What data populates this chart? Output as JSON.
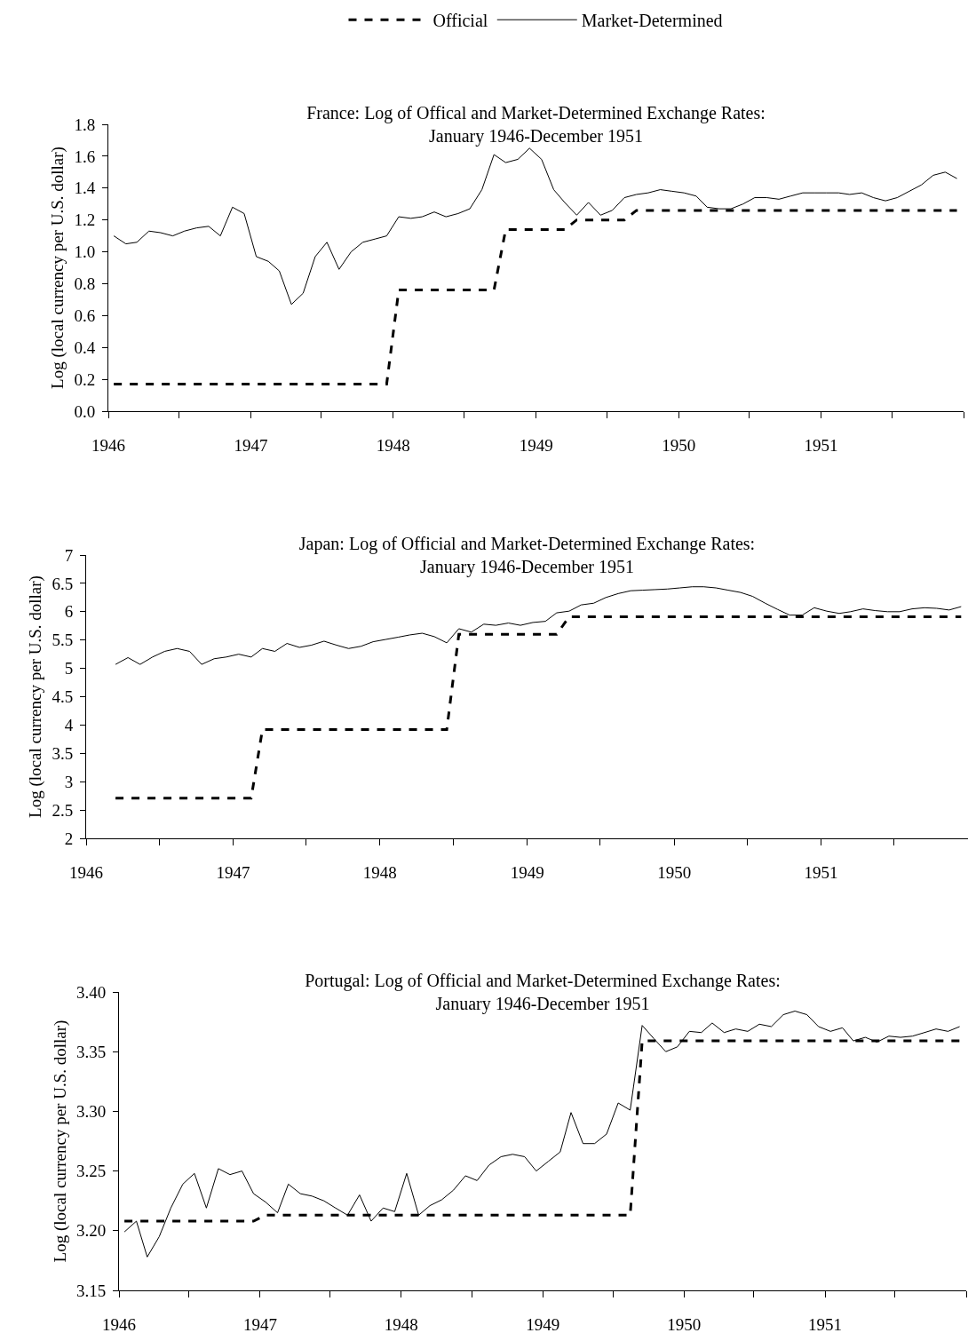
{
  "chart_data": [
    {
      "type": "line",
      "title": "France: Log of Offical and Market-Determined Exchange Rates:\nJanuary 1946-December 1951",
      "ylabel": "Log (local currency per U.S. dollar)",
      "legend": "top",
      "x": [
        "1946-01-15",
        "1946-02-15",
        "1946-03-15",
        "1946-04-15",
        "1946-05-15",
        "1946-06-15",
        "1946-07-15",
        "1946-08-15",
        "1946-09-15",
        "1946-10-15",
        "1946-11-15",
        "1946-12-15",
        "1947-01-15",
        "1947-02-15",
        "1947-03-15",
        "1947-04-15",
        "1947-05-15",
        "1947-06-15",
        "1947-07-15",
        "1947-08-15",
        "1947-09-15",
        "1947-10-15",
        "1947-11-15",
        "1947-12-15",
        "1948-01-15",
        "1948-02-15",
        "1948-03-15",
        "1948-04-15",
        "1948-05-15",
        "1948-06-15",
        "1948-07-15",
        "1948-08-15",
        "1948-09-15",
        "1948-10-15",
        "1948-11-15",
        "1948-12-15",
        "1949-01-15",
        "1949-02-15",
        "1949-03-15",
        "1949-04-15",
        "1949-05-15",
        "1949-06-15",
        "1949-07-15",
        "1949-08-15",
        "1949-09-15",
        "1949-10-15",
        "1949-11-15",
        "1949-12-15",
        "1950-01-15",
        "1950-02-15",
        "1950-03-15",
        "1950-04-15",
        "1950-05-15",
        "1950-06-15",
        "1950-07-15",
        "1950-08-15",
        "1950-09-15",
        "1950-10-15",
        "1950-11-15",
        "1950-12-15",
        "1951-01-15",
        "1951-02-15",
        "1951-03-15",
        "1951-04-15",
        "1951-05-15",
        "1951-06-15",
        "1951-07-15",
        "1951-08-15",
        "1951-09-15",
        "1951-10-15",
        "1951-11-15",
        "1951-12-15"
      ],
      "series": [
        {
          "name": "Official",
          "color": "#000000",
          "line_style": "dashed",
          "values": [
            0.17,
            0.17,
            0.17,
            0.17,
            0.17,
            0.17,
            0.17,
            0.17,
            0.17,
            0.17,
            0.17,
            0.17,
            0.17,
            0.17,
            0.17,
            0.17,
            0.17,
            0.17,
            0.17,
            0.17,
            0.17,
            0.17,
            0.17,
            0.17,
            0.76,
            0.76,
            0.76,
            0.76,
            0.76,
            0.76,
            0.76,
            0.76,
            0.76,
            1.14,
            1.14,
            1.14,
            1.14,
            1.14,
            1.14,
            1.2,
            1.2,
            1.2,
            1.2,
            1.2,
            1.26,
            1.26,
            1.26,
            1.26,
            1.26,
            1.26,
            1.26,
            1.26,
            1.26,
            1.26,
            1.26,
            1.26,
            1.26,
            1.26,
            1.26,
            1.26,
            1.26,
            1.26,
            1.26,
            1.26,
            1.26,
            1.26,
            1.26,
            1.26,
            1.26,
            1.26,
            1.26,
            1.26
          ]
        },
        {
          "name": "Market-Determined",
          "color": "#000000",
          "line_style": "solid",
          "values": [
            1.1,
            1.05,
            1.06,
            1.13,
            1.12,
            1.1,
            1.13,
            1.15,
            1.16,
            1.1,
            1.28,
            1.24,
            0.97,
            0.94,
            0.88,
            0.67,
            0.74,
            0.97,
            1.06,
            0.89,
            1.0,
            1.06,
            1.08,
            1.1,
            1.22,
            1.21,
            1.22,
            1.25,
            1.22,
            1.24,
            1.27,
            1.39,
            1.61,
            1.56,
            1.58,
            1.65,
            1.58,
            1.39,
            1.31,
            1.23,
            1.31,
            1.23,
            1.26,
            1.34,
            1.36,
            1.37,
            1.39,
            1.38,
            1.37,
            1.35,
            1.28,
            1.27,
            1.27,
            1.3,
            1.34,
            1.34,
            1.33,
            1.35,
            1.37,
            1.37,
            1.37,
            1.37,
            1.36,
            1.37,
            1.34,
            1.32,
            1.34,
            1.38,
            1.42,
            1.48,
            1.5,
            1.46
          ]
        }
      ],
      "xlim": [
        "1946-01-01",
        "1952-01-01"
      ],
      "xticks": [
        {
          "value": "1946-01-01",
          "label": "1946"
        },
        {
          "value": "1946-07-01",
          "label": null
        },
        {
          "value": "1947-01-01",
          "label": "1947"
        },
        {
          "value": "1947-07-01",
          "label": null
        },
        {
          "value": "1948-01-01",
          "label": "1948"
        },
        {
          "value": "1948-07-01",
          "label": null
        },
        {
          "value": "1949-01-01",
          "label": "1949"
        },
        {
          "value": "1949-07-01",
          "label": null
        },
        {
          "value": "1950-01-01",
          "label": "1950"
        },
        {
          "value": "1950-07-01",
          "label": null
        },
        {
          "value": "1951-01-01",
          "label": "1951"
        },
        {
          "value": "1951-07-01",
          "label": null
        },
        {
          "value": "1952-01-01",
          "label": null
        }
      ],
      "ylim": [
        0,
        1.8
      ],
      "yticks": [
        {
          "value": 0,
          "label": "0.0"
        },
        {
          "value": 0.2,
          "label": "0.2"
        },
        {
          "value": 0.4,
          "label": "0.4"
        },
        {
          "value": 0.6,
          "label": "0.6"
        },
        {
          "value": 0.8,
          "label": "0.8"
        },
        {
          "value": 1,
          "label": "1.0"
        },
        {
          "value": 1.2,
          "label": "1.2"
        },
        {
          "value": 1.4,
          "label": "1.4"
        },
        {
          "value": 1.6,
          "label": "1.6"
        },
        {
          "value": 1.8,
          "label": "1.8"
        }
      ]
    },
    {
      "type": "line",
      "title": "Japan: Log of Official and Market-Determined Exchange Rates:\nJanuary 1946-December 1951",
      "ylabel": "Log (local currency per U.S. dollar)",
      "x": [
        "1946-03-15",
        "1946-04-15",
        "1946-05-15",
        "1946-06-15",
        "1946-07-15",
        "1946-08-15",
        "1946-09-15",
        "1946-10-15",
        "1946-11-15",
        "1946-12-15",
        "1947-01-15",
        "1947-02-15",
        "1947-03-15",
        "1947-04-15",
        "1947-05-15",
        "1947-06-15",
        "1947-07-15",
        "1947-08-15",
        "1947-09-15",
        "1947-10-15",
        "1947-11-15",
        "1947-12-15",
        "1948-01-15",
        "1948-02-15",
        "1948-03-15",
        "1948-04-15",
        "1948-05-15",
        "1948-06-15",
        "1948-07-15",
        "1948-08-15",
        "1948-09-15",
        "1948-10-15",
        "1948-11-15",
        "1948-12-15",
        "1949-01-15",
        "1949-02-15",
        "1949-03-15",
        "1949-04-15",
        "1949-05-15",
        "1949-06-15",
        "1949-07-15",
        "1949-08-15",
        "1949-09-15",
        "1949-10-15",
        "1949-11-15",
        "1949-12-15",
        "1950-01-15",
        "1950-02-15",
        "1950-03-15",
        "1950-04-15",
        "1950-05-15",
        "1950-06-15",
        "1950-07-15",
        "1950-08-15",
        "1950-09-15",
        "1950-10-15",
        "1950-11-15",
        "1950-12-15",
        "1951-01-15",
        "1951-02-15",
        "1951-03-15",
        "1951-04-15",
        "1951-05-15",
        "1951-06-15",
        "1951-07-15",
        "1951-08-15",
        "1951-09-15",
        "1951-10-15",
        "1951-11-15",
        "1951-12-15"
      ],
      "series": [
        {
          "color": "#000000",
          "line_style": "dashed",
          "values": [
            2.71,
            2.71,
            2.71,
            2.71,
            2.71,
            2.71,
            2.71,
            2.71,
            2.71,
            2.71,
            2.71,
            2.71,
            3.92,
            3.92,
            3.92,
            3.92,
            3.92,
            3.92,
            3.92,
            3.92,
            3.92,
            3.92,
            3.92,
            3.92,
            3.92,
            3.92,
            3.92,
            3.92,
            5.6,
            5.6,
            5.6,
            5.6,
            5.6,
            5.6,
            5.6,
            5.6,
            5.6,
            5.91,
            5.91,
            5.91,
            5.91,
            5.91,
            5.91,
            5.91,
            5.91,
            5.91,
            5.91,
            5.91,
            5.91,
            5.91,
            5.91,
            5.91,
            5.91,
            5.91,
            5.91,
            5.91,
            5.91,
            5.91,
            5.91,
            5.91,
            5.91,
            5.91,
            5.91,
            5.91,
            5.91,
            5.91,
            5.91,
            5.91,
            5.91,
            5.91
          ]
        },
        {
          "color": "#000000",
          "line_style": "solid",
          "values": [
            5.07,
            5.19,
            5.07,
            5.2,
            5.3,
            5.35,
            5.3,
            5.07,
            5.17,
            5.2,
            5.25,
            5.2,
            5.35,
            5.3,
            5.44,
            5.37,
            5.41,
            5.48,
            5.41,
            5.35,
            5.39,
            5.47,
            5.51,
            5.55,
            5.59,
            5.62,
            5.56,
            5.45,
            5.7,
            5.64,
            5.78,
            5.76,
            5.8,
            5.76,
            5.81,
            5.83,
            5.98,
            6.01,
            6.12,
            6.15,
            6.25,
            6.32,
            6.37,
            6.38,
            6.39,
            6.4,
            6.42,
            6.44,
            6.44,
            6.42,
            6.38,
            6.34,
            6.27,
            6.15,
            6.04,
            5.94,
            5.94,
            6.07,
            6.01,
            5.97,
            6.0,
            6.05,
            6.02,
            6.0,
            6.0,
            6.05,
            6.07,
            6.06,
            6.03,
            6.09
          ]
        }
      ],
      "xlim": [
        "1946-01-01",
        "1952-01-01"
      ],
      "xticks": [
        {
          "value": "1946-01-01",
          "label": "1946"
        },
        {
          "value": "1946-07-01",
          "label": null
        },
        {
          "value": "1947-01-01",
          "label": "1947"
        },
        {
          "value": "1947-07-01",
          "label": null
        },
        {
          "value": "1948-01-01",
          "label": "1948"
        },
        {
          "value": "1948-07-01",
          "label": null
        },
        {
          "value": "1949-01-01",
          "label": "1949"
        },
        {
          "value": "1949-07-01",
          "label": null
        },
        {
          "value": "1950-01-01",
          "label": "1950"
        },
        {
          "value": "1950-07-01",
          "label": null
        },
        {
          "value": "1951-01-01",
          "label": "1951"
        },
        {
          "value": "1951-07-01",
          "label": null
        },
        {
          "value": "1952-01-01",
          "label": null
        }
      ],
      "ylim": [
        2,
        7
      ],
      "yticks": [
        2,
        2.5,
        3,
        3.5,
        4,
        4.5,
        5,
        5.5,
        6,
        6.5,
        7
      ]
    },
    {
      "type": "line",
      "title": "Portugal: Log of Official and Market-Determined Exchange Rates:\nJanuary 1946-December 1951",
      "ylabel": "Log (local currency per U.S. dollar)",
      "x": [
        "1946-01-15",
        "1946-02-15",
        "1946-03-15",
        "1946-04-15",
        "1946-05-15",
        "1946-06-15",
        "1946-07-15",
        "1946-08-15",
        "1946-09-15",
        "1946-10-15",
        "1946-11-15",
        "1946-12-15",
        "1947-01-15",
        "1947-02-15",
        "1947-03-15",
        "1947-04-15",
        "1947-05-15",
        "1947-06-15",
        "1947-07-15",
        "1947-08-15",
        "1947-09-15",
        "1947-10-15",
        "1947-11-15",
        "1947-12-15",
        "1948-01-15",
        "1948-02-15",
        "1948-03-15",
        "1948-04-15",
        "1948-05-15",
        "1948-06-15",
        "1948-07-15",
        "1948-08-15",
        "1948-09-15",
        "1948-10-15",
        "1948-11-15",
        "1948-12-15",
        "1949-01-15",
        "1949-02-15",
        "1949-03-15",
        "1949-04-15",
        "1949-05-15",
        "1949-06-15",
        "1949-07-15",
        "1949-08-15",
        "1949-09-15",
        "1949-10-15",
        "1949-11-15",
        "1949-12-15",
        "1950-01-15",
        "1950-02-15",
        "1950-03-15",
        "1950-04-15",
        "1950-05-15",
        "1950-06-15",
        "1950-07-15",
        "1950-08-15",
        "1950-09-15",
        "1950-10-15",
        "1950-11-15",
        "1950-12-15",
        "1951-01-15",
        "1951-02-15",
        "1951-03-15",
        "1951-04-15",
        "1951-05-15",
        "1951-06-15",
        "1951-07-15",
        "1951-08-15",
        "1951-09-15",
        "1951-10-15",
        "1951-11-15",
        "1951-12-15"
      ],
      "series": [
        {
          "color": "#000000",
          "line_style": "dashed",
          "values": [
            3.208,
            3.208,
            3.208,
            3.208,
            3.208,
            3.208,
            3.208,
            3.208,
            3.208,
            3.208,
            3.208,
            3.208,
            3.213,
            3.213,
            3.213,
            3.213,
            3.213,
            3.213,
            3.213,
            3.213,
            3.213,
            3.213,
            3.213,
            3.213,
            3.213,
            3.213,
            3.213,
            3.213,
            3.213,
            3.213,
            3.213,
            3.213,
            3.213,
            3.213,
            3.213,
            3.213,
            3.213,
            3.213,
            3.213,
            3.213,
            3.213,
            3.213,
            3.213,
            3.213,
            3.359,
            3.359,
            3.359,
            3.359,
            3.359,
            3.359,
            3.359,
            3.359,
            3.359,
            3.359,
            3.359,
            3.359,
            3.359,
            3.359,
            3.359,
            3.359,
            3.359,
            3.359,
            3.359,
            3.359,
            3.359,
            3.359,
            3.359,
            3.359,
            3.359,
            3.359,
            3.359,
            3.359
          ]
        },
        {
          "color": "#000000",
          "line_style": "solid",
          "values": [
            3.199,
            3.208,
            3.178,
            3.195,
            3.219,
            3.239,
            3.248,
            3.219,
            3.252,
            3.247,
            3.25,
            3.231,
            3.224,
            3.215,
            3.239,
            3.231,
            3.229,
            3.225,
            3.219,
            3.213,
            3.23,
            3.208,
            3.219,
            3.216,
            3.248,
            3.213,
            3.221,
            3.226,
            3.234,
            3.246,
            3.242,
            3.255,
            3.262,
            3.264,
            3.262,
            3.25,
            3.258,
            3.266,
            3.299,
            3.273,
            3.273,
            3.281,
            3.307,
            3.301,
            3.372,
            3.361,
            3.35,
            3.354,
            3.367,
            3.366,
            3.374,
            3.366,
            3.369,
            3.367,
            3.373,
            3.371,
            3.381,
            3.384,
            3.381,
            3.371,
            3.367,
            3.37,
            3.359,
            3.362,
            3.358,
            3.363,
            3.362,
            3.363,
            3.366,
            3.369,
            3.367,
            3.371
          ]
        }
      ],
      "xlim": [
        "1946-01-01",
        "1952-01-01"
      ],
      "xticks": [
        {
          "value": "1946-01-01",
          "label": "1946"
        },
        {
          "value": "1946-07-01",
          "label": null
        },
        {
          "value": "1947-01-01",
          "label": "1947"
        },
        {
          "value": "1947-07-01",
          "label": null
        },
        {
          "value": "1948-01-01",
          "label": "1948"
        },
        {
          "value": "1948-07-01",
          "label": null
        },
        {
          "value": "1949-01-01",
          "label": "1949"
        },
        {
          "value": "1949-07-01",
          "label": null
        },
        {
          "value": "1950-01-01",
          "label": "1950"
        },
        {
          "value": "1950-07-01",
          "label": null
        },
        {
          "value": "1951-01-01",
          "label": "1951"
        },
        {
          "value": "1951-07-01",
          "label": null
        },
        {
          "value": "1952-01-01",
          "label": null
        }
      ],
      "ylim": [
        3.15,
        3.4
      ],
      "yticks": [
        3.15,
        {
          "value": 3.2,
          "label": "3.20"
        },
        3.25,
        {
          "value": 3.3,
          "label": "3.30"
        },
        3.35,
        {
          "value": 3.4,
          "label": "3.40"
        }
      ]
    }
  ]
}
